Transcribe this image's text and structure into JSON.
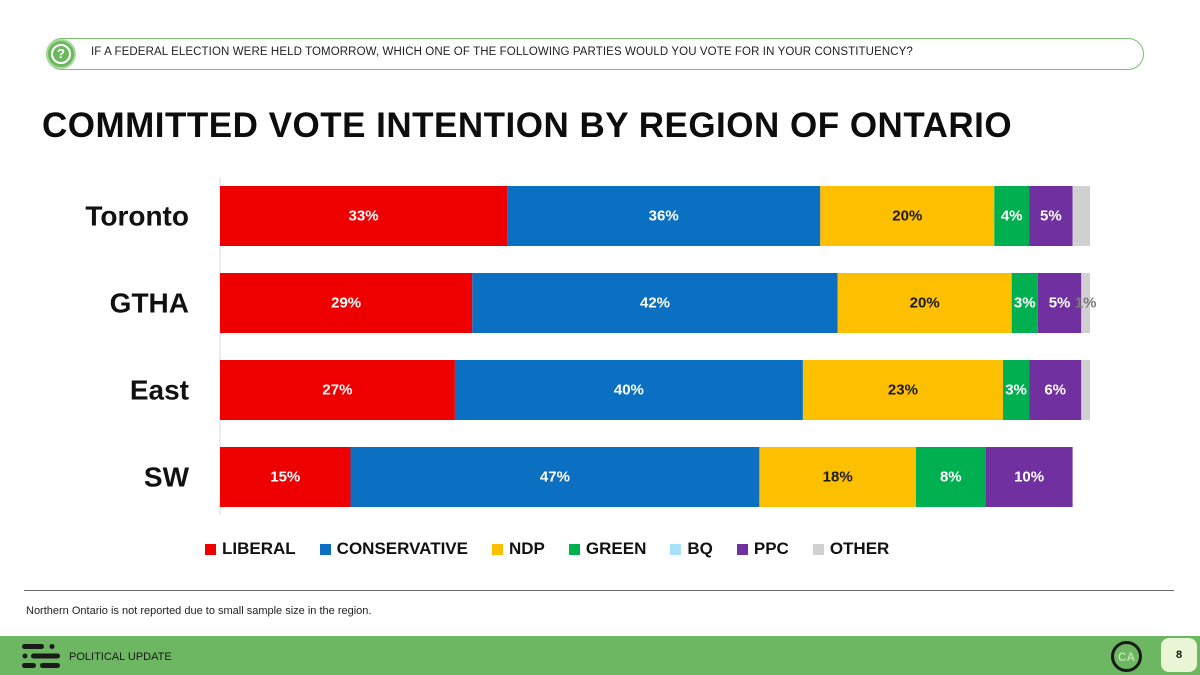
{
  "question": {
    "icon": "question-mark-icon",
    "text": "IF A FEDERAL ELECTION WERE HELD TOMORROW, WHICH ONE OF THE FOLLOWING PARTIES WOULD YOU VOTE FOR IN YOUR CONSTITUENCY?"
  },
  "title": "COMMITTED VOTE INTENTION BY REGION OF ONTARIO",
  "chart_data": {
    "type": "bar",
    "orientation": "horizontal",
    "stacked": true,
    "title": "COMMITTED VOTE INTENTION BY REGION OF ONTARIO",
    "categories": [
      "Toronto",
      "GTHA",
      "East",
      "SW"
    ],
    "xlim": [
      0,
      100
    ],
    "value_format": "percent",
    "grid": false,
    "legend_position": "bottom",
    "series": [
      {
        "name": "LIBERAL",
        "color": "#ee0000",
        "values": [
          33,
          29,
          27,
          15
        ]
      },
      {
        "name": "CONSERVATIVE",
        "color": "#0b70c2",
        "values": [
          36,
          42,
          40,
          47
        ]
      },
      {
        "name": "NDP",
        "color": "#fcc000",
        "values": [
          20,
          20,
          23,
          18
        ]
      },
      {
        "name": "GREEN",
        "color": "#00b050",
        "values": [
          4,
          3,
          3,
          8
        ]
      },
      {
        "name": "BQ",
        "color": "#a9e1fb",
        "values": [
          0,
          0,
          0,
          0
        ]
      },
      {
        "name": "PPC",
        "color": "#7030a0",
        "values": [
          5,
          5,
          6,
          10
        ]
      },
      {
        "name": "OTHER",
        "color": "#d0d0d0",
        "values": [
          2,
          1,
          1,
          0
        ]
      }
    ],
    "data_labels": [
      [
        "33%",
        "36%",
        "20%",
        "4%",
        "",
        "5%",
        ""
      ],
      [
        "29%",
        "42%",
        "20%",
        "3%",
        "",
        "5%",
        "1%"
      ],
      [
        "27%",
        "40%",
        "23%",
        "3%",
        "",
        "6%",
        ""
      ],
      [
        "15%",
        "47%",
        "18%",
        "8%",
        "",
        "10%",
        ""
      ]
    ]
  },
  "legend": [
    {
      "label": "LIBERAL",
      "color": "#ee0000"
    },
    {
      "label": "CONSERVATIVE",
      "color": "#0b70c2"
    },
    {
      "label": "NDP",
      "color": "#fcc000"
    },
    {
      "label": "GREEN",
      "color": "#00b050"
    },
    {
      "label": "BQ",
      "color": "#a9e1fb"
    },
    {
      "label": "PPC",
      "color": "#7030a0"
    },
    {
      "label": "OTHER",
      "color": "#d0d0d0"
    }
  ],
  "footnote": "Northern Ontario is not reported due to small sample size in the region.",
  "footer": {
    "logo_icon": "bars-logo-icon",
    "label": "POLITICAL UPDATE",
    "badge_text": "CA",
    "page_number": "8"
  },
  "colors": {
    "accent_green": "#6db662",
    "badge_bg": "#e9f5d4"
  }
}
